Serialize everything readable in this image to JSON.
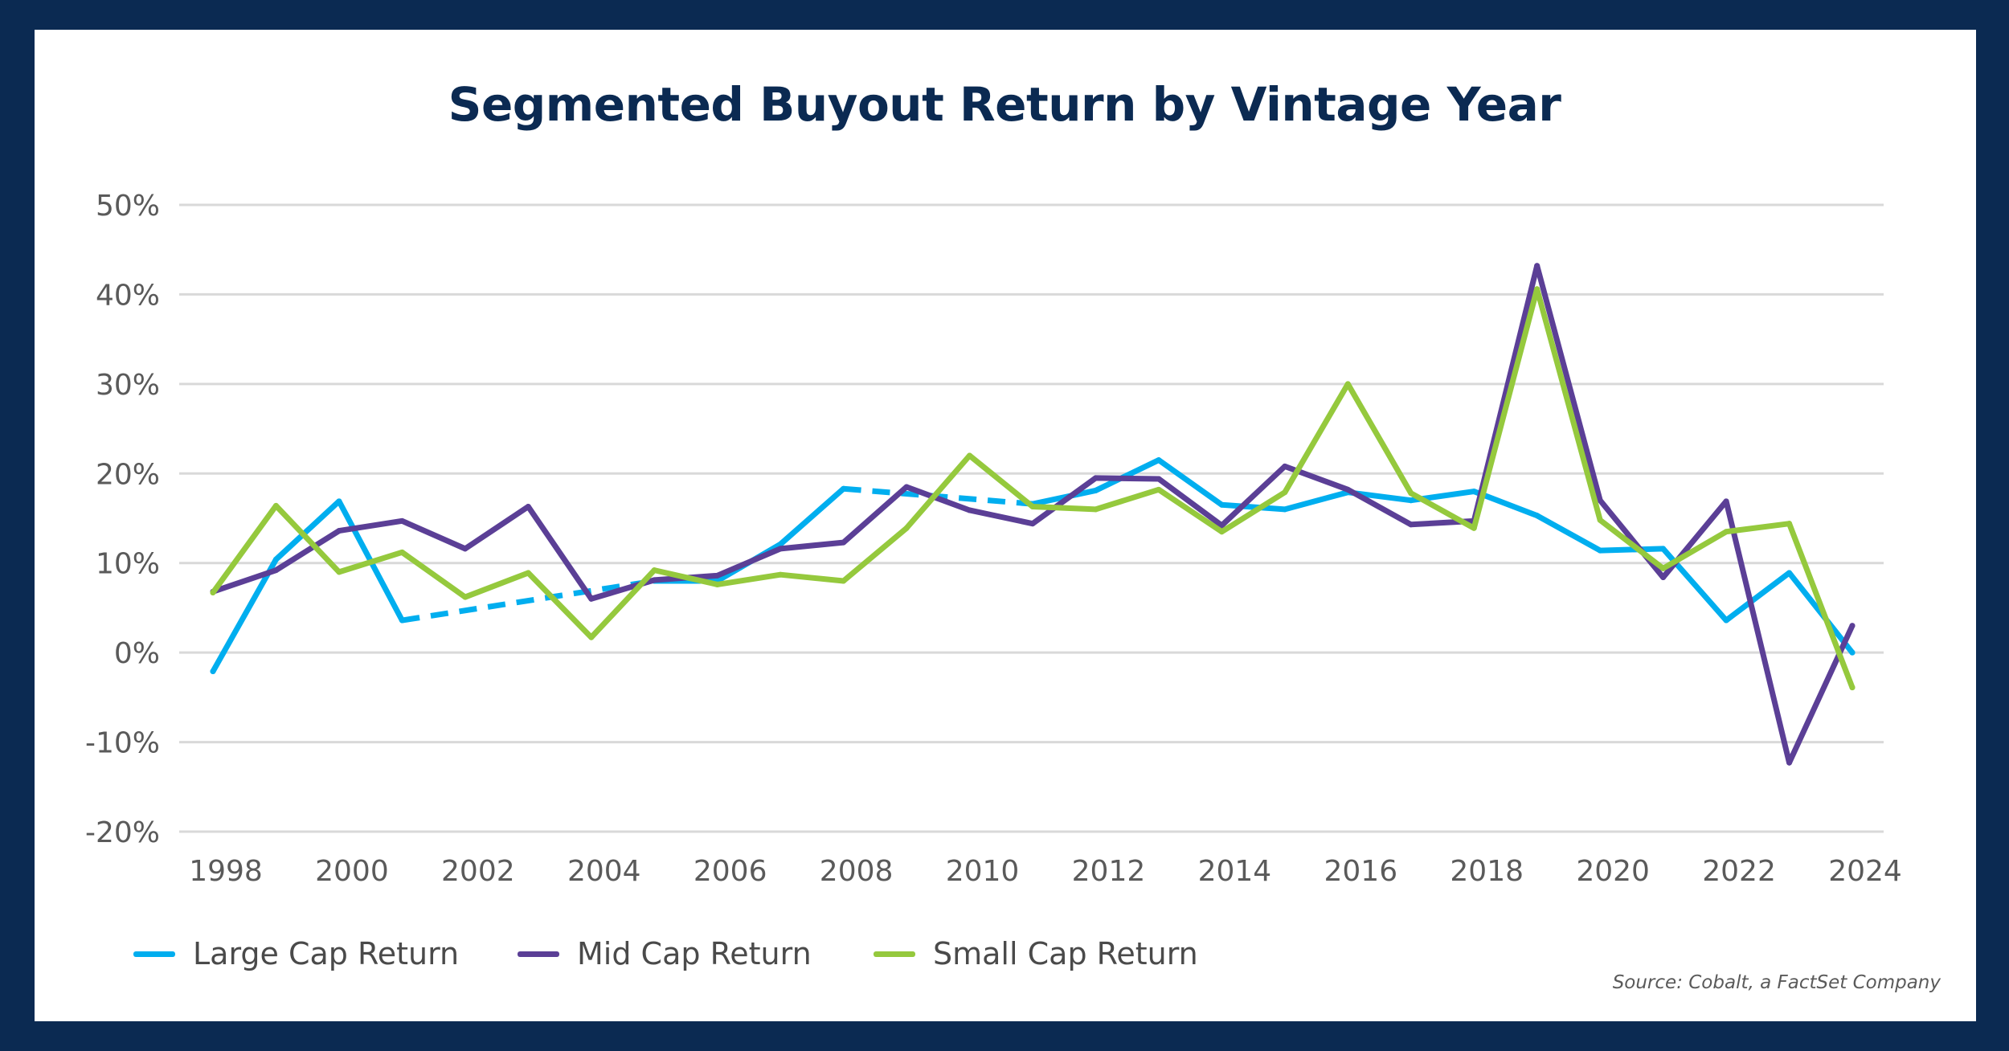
{
  "chart_data": {
    "type": "line",
    "title": "Segmented Buyout Return by Vintage Year",
    "x": [
      1998,
      1999,
      2000,
      2001,
      2002,
      2003,
      2004,
      2005,
      2006,
      2007,
      2008,
      2009,
      2010,
      2011,
      2012,
      2013,
      2014,
      2015,
      2016,
      2017,
      2018,
      2019,
      2020,
      2021,
      2022,
      2023,
      2024
    ],
    "x_tick_labels": [
      "1998",
      "2000",
      "2002",
      "2004",
      "2006",
      "2008",
      "2010",
      "2012",
      "2014",
      "2016",
      "2018",
      "2020",
      "2022",
      "2024"
    ],
    "y_tick_labels": [
      "50%",
      "40%",
      "30%",
      "20%",
      "10%",
      "0%",
      "-10%",
      "-20%"
    ],
    "ylim": [
      -20,
      50
    ],
    "y_unit": "%",
    "grid": true,
    "legend_position": "bottom-left",
    "series": [
      {
        "name": "Large Cap Return",
        "color": "#00aeef",
        "gap_style": "dashed",
        "values": [
          -2.1,
          10.4,
          16.9,
          3.6,
          null,
          null,
          null,
          8.0,
          8.0,
          12.1,
          18.3,
          null,
          null,
          16.6,
          18.1,
          21.5,
          16.5,
          16.0,
          17.9,
          17.0,
          18.0,
          15.3,
          11.4,
          11.6,
          3.6,
          8.9,
          0.0
        ]
      },
      {
        "name": "Mid Cap Return",
        "color": "#5b3f96",
        "values": [
          6.8,
          9.2,
          13.6,
          14.7,
          11.6,
          16.3,
          6.0,
          8.1,
          8.6,
          11.6,
          12.3,
          18.5,
          15.9,
          14.4,
          19.5,
          19.4,
          14.2,
          20.8,
          18.2,
          14.3,
          14.7,
          43.2,
          17.0,
          8.4,
          16.9,
          -12.3,
          3.0
        ]
      },
      {
        "name": "Small Cap Return",
        "color": "#95c93d",
        "values": [
          6.7,
          16.4,
          9.0,
          11.2,
          6.2,
          8.9,
          1.7,
          9.2,
          7.6,
          8.7,
          8.0,
          13.9,
          22.0,
          16.3,
          16.0,
          18.2,
          13.5,
          17.9,
          30.0,
          17.8,
          13.9,
          40.6,
          14.8,
          9.4,
          13.5,
          14.4,
          -3.9
        ]
      }
    ],
    "source": "Source: Cobalt, a FactSet Company"
  },
  "colors": {
    "frame": "#0b2a52",
    "grid": "#d9d9d9",
    "title": "#0b2a52"
  }
}
